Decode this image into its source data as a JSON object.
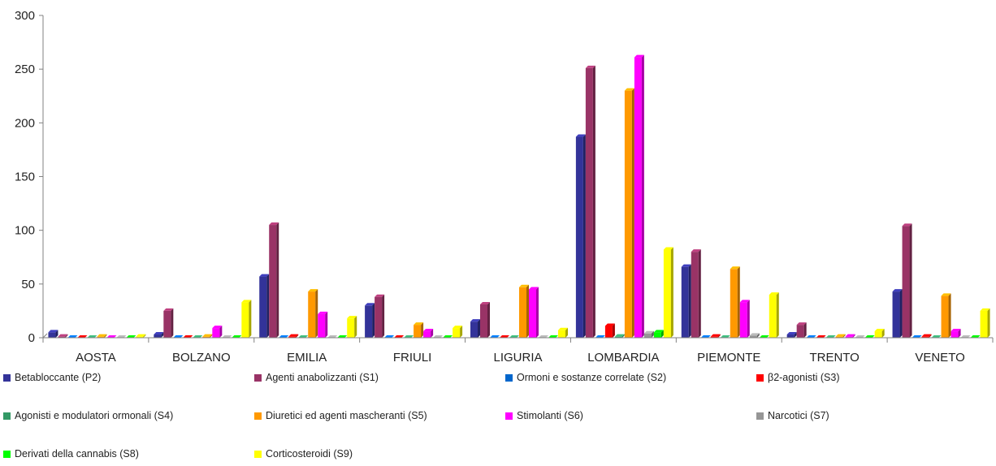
{
  "chart_data": {
    "type": "bar",
    "title": "",
    "xlabel": "",
    "ylabel": "",
    "ylim": [
      0,
      300
    ],
    "yticks": [
      "0",
      "50",
      "100",
      "150",
      "200",
      "250",
      "300"
    ],
    "grid": false,
    "legend_position": "bottom",
    "categories": [
      "AOSTA",
      "BOLZANO",
      "EMILIA",
      "FRIULI",
      "LIGURIA",
      "LOMBARDIA",
      "PIEMONTE",
      "TRENTO",
      "VENETO"
    ],
    "series": [
      {
        "name": "Betabloccante (P2)",
        "color": "#333399",
        "values": [
          5,
          3,
          57,
          30,
          15,
          187,
          66,
          3,
          43
        ]
      },
      {
        "name": "Agenti anabolizzanti (S1)",
        "color": "#993366",
        "values": [
          1,
          25,
          105,
          38,
          31,
          251,
          80,
          12,
          104
        ]
      },
      {
        "name": "Ormoni e sostanze correlate (S2)",
        "color": "#0066cc",
        "values": [
          0,
          0,
          0,
          0,
          0,
          0,
          0,
          0,
          0
        ]
      },
      {
        "name": "β2-agonisti (S3)",
        "color": "#ff0000",
        "values": [
          0,
          0,
          1,
          0,
          0,
          11,
          1,
          0,
          1
        ]
      },
      {
        "name": "Agonisti e modulatori ormonali (S4)",
        "color": "#339966",
        "values": [
          0,
          0,
          0,
          0,
          0,
          1,
          0,
          0,
          0
        ]
      },
      {
        "name": "Diuretici ed agenti mascheranti (S5)",
        "color": "#ff9900",
        "values": [
          1,
          1,
          43,
          12,
          47,
          230,
          64,
          1,
          39
        ]
      },
      {
        "name": "Stimolanti (S6)",
        "color": "#ff00ff",
        "values": [
          0,
          9,
          22,
          6,
          45,
          261,
          33,
          1,
          6
        ]
      },
      {
        "name": "Narcotici (S7)",
        "color": "#969696",
        "values": [
          0,
          0,
          0,
          0,
          0,
          4,
          2,
          0,
          0
        ]
      },
      {
        "name": "Derivati della cannabis (S8)",
        "color": "#00ff00",
        "values": [
          0,
          0,
          0,
          0,
          0,
          5,
          0,
          0,
          0
        ]
      },
      {
        "name": "Corticosteroidi (S9)",
        "color": "#ffff00",
        "values": [
          1,
          33,
          18,
          9,
          7,
          82,
          40,
          6,
          25
        ]
      }
    ]
  }
}
